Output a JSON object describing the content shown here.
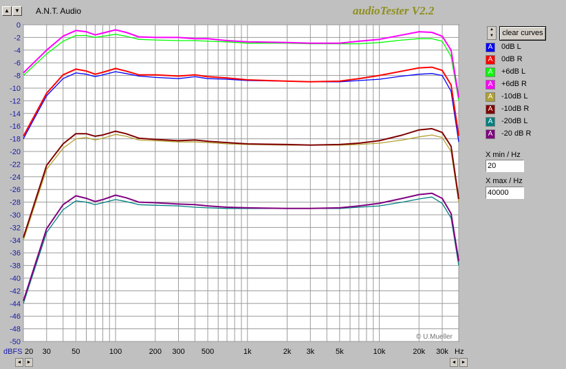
{
  "app_name": "A.N.T. Audio",
  "app_title": "audioTester V2.2",
  "copyright": "© U.Mueller",
  "clear_button": "clear curves",
  "xmin_label": "X min / Hz",
  "xmin_value": "20",
  "xmax_label": "X max / Hz",
  "xmax_value": "40000",
  "chart_data": {
    "type": "line",
    "x_scale": "log",
    "xlim": [
      20,
      40000
    ],
    "ylim": [
      -50,
      0
    ],
    "ylabel": "dBFS",
    "xlabel": "Hz",
    "grid": true,
    "y_ticks": [
      0,
      -2,
      -4,
      -6,
      -8,
      -10,
      -12,
      -14,
      -16,
      -18,
      -20,
      -22,
      -24,
      -26,
      -28,
      -30,
      -32,
      -34,
      -36,
      -38,
      -40,
      -42,
      -44,
      -46,
      -48,
      -50
    ],
    "x_ticks": [
      {
        "v": 20,
        "label": "20"
      },
      {
        "v": 30,
        "label": "30"
      },
      {
        "v": 50,
        "label": "50"
      },
      {
        "v": 100,
        "label": "100"
      },
      {
        "v": 200,
        "label": "200"
      },
      {
        "v": 300,
        "label": "300"
      },
      {
        "v": 500,
        "label": "500"
      },
      {
        "v": 1000,
        "label": "1k"
      },
      {
        "v": 2000,
        "label": "2k"
      },
      {
        "v": 3000,
        "label": "3k"
      },
      {
        "v": 5000,
        "label": "5k"
      },
      {
        "v": 10000,
        "label": "10k"
      },
      {
        "v": 20000,
        "label": "20k"
      },
      {
        "v": 30000,
        "label": "30k"
      }
    ],
    "x": [
      20,
      30,
      40,
      50,
      60,
      70,
      80,
      100,
      120,
      150,
      200,
      300,
      400,
      500,
      700,
      1000,
      2000,
      3000,
      5000,
      7000,
      10000,
      15000,
      20000,
      25000,
      30000,
      35000,
      40000
    ],
    "series": [
      {
        "name": "0dB L",
        "color": "#0000ff",
        "values": [
          -18.0,
          -11.2,
          -8.5,
          -7.6,
          -7.8,
          -8.2,
          -7.9,
          -7.4,
          -7.7,
          -8.1,
          -8.3,
          -8.5,
          -8.2,
          -8.5,
          -8.6,
          -8.8,
          -8.9,
          -9.0,
          -9.0,
          -8.8,
          -8.6,
          -8.1,
          -7.8,
          -7.7,
          -8.0,
          -10.5,
          -18.5
        ]
      },
      {
        "name": "0dB R",
        "color": "#ff0000",
        "values": [
          -17.6,
          -10.8,
          -7.9,
          -7.0,
          -7.3,
          -7.8,
          -7.5,
          -6.9,
          -7.3,
          -7.9,
          -7.9,
          -8.1,
          -7.9,
          -8.2,
          -8.4,
          -8.7,
          -8.9,
          -9.0,
          -8.9,
          -8.5,
          -8.0,
          -7.3,
          -6.8,
          -6.7,
          -7.2,
          -9.5,
          -17.5
        ]
      },
      {
        "name": "+6dB L",
        "color": "#00ff00",
        "values": [
          -8.0,
          -4.6,
          -2.6,
          -1.7,
          -1.7,
          -2.0,
          -1.8,
          -1.5,
          -1.8,
          -2.3,
          -2.4,
          -2.5,
          -2.5,
          -2.6,
          -2.7,
          -2.9,
          -2.9,
          -3.0,
          -3.0,
          -3.0,
          -2.8,
          -2.4,
          -2.2,
          -2.2,
          -2.6,
          -5.0,
          -12.0
        ]
      },
      {
        "name": "+6dB R",
        "color": "#ff00ff",
        "values": [
          -7.6,
          -4.0,
          -1.8,
          -0.9,
          -1.1,
          -1.6,
          -1.3,
          -0.8,
          -1.2,
          -1.9,
          -2.0,
          -2.0,
          -2.2,
          -2.2,
          -2.5,
          -2.7,
          -2.8,
          -2.9,
          -2.9,
          -2.6,
          -2.3,
          -1.6,
          -1.1,
          -1.2,
          -1.8,
          -4.0,
          -11.5
        ]
      },
      {
        "name": "-10dB L",
        "color": "#b0a030",
        "values": [
          -34.0,
          -22.8,
          -19.5,
          -18.0,
          -17.8,
          -18.2,
          -17.9,
          -17.3,
          -17.6,
          -18.2,
          -18.3,
          -18.5,
          -18.5,
          -18.6,
          -18.8,
          -18.9,
          -19.0,
          -19.0,
          -19.0,
          -18.9,
          -18.7,
          -18.2,
          -17.7,
          -17.4,
          -17.8,
          -20.0,
          -28.0
        ]
      },
      {
        "name": "-10dB R",
        "color": "#800000",
        "values": [
          -33.6,
          -22.2,
          -18.8,
          -17.2,
          -17.2,
          -17.6,
          -17.4,
          -16.8,
          -17.2,
          -17.9,
          -18.1,
          -18.3,
          -18.2,
          -18.4,
          -18.6,
          -18.8,
          -18.9,
          -19.0,
          -18.9,
          -18.7,
          -18.3,
          -17.4,
          -16.6,
          -16.4,
          -17.0,
          -19.2,
          -27.5
        ]
      },
      {
        "name": "-20dB L",
        "color": "#008080",
        "values": [
          -44.0,
          -32.8,
          -29.2,
          -27.8,
          -28.0,
          -28.4,
          -28.1,
          -27.6,
          -27.9,
          -28.4,
          -28.5,
          -28.6,
          -28.8,
          -28.9,
          -29.0,
          -29.0,
          -29.0,
          -29.0,
          -29.0,
          -28.8,
          -28.6,
          -28.0,
          -27.5,
          -27.2,
          -28.2,
          -30.5,
          -38.0
        ]
      },
      {
        "name": "-20 dB R",
        "color": "#800080",
        "values": [
          -43.6,
          -32.2,
          -28.4,
          -27.0,
          -27.4,
          -27.9,
          -27.6,
          -26.9,
          -27.3,
          -28.0,
          -28.1,
          -28.3,
          -28.4,
          -28.6,
          -28.8,
          -28.9,
          -29.0,
          -29.0,
          -28.9,
          -28.6,
          -28.2,
          -27.4,
          -26.8,
          -26.6,
          -27.4,
          -29.8,
          -37.3
        ]
      }
    ]
  }
}
